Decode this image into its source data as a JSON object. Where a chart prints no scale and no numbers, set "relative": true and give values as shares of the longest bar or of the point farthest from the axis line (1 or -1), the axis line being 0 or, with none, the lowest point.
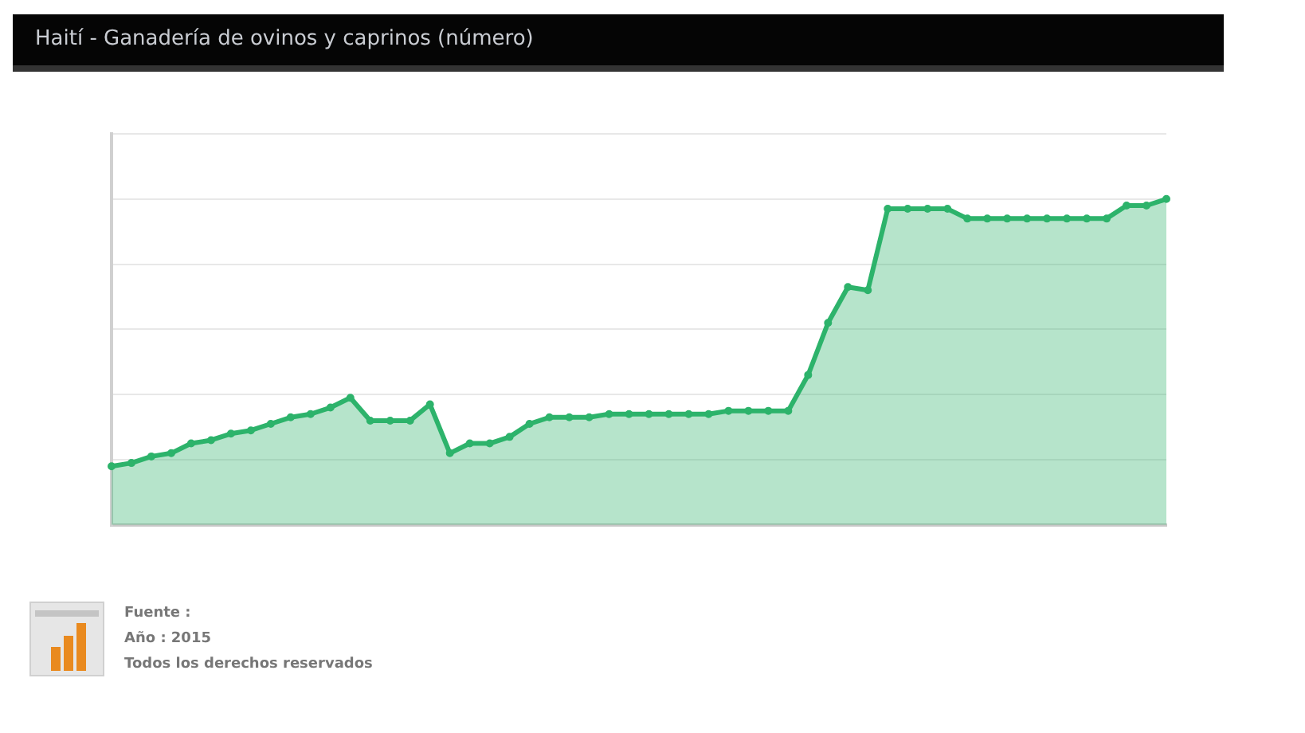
{
  "chart_data": {
    "type": "area",
    "title": "Haití - Ganadería de ovinos y caprinos (número)",
    "categories": [
      null,
      null,
      null,
      null,
      null,
      null,
      null,
      null,
      null,
      null,
      null,
      null,
      null,
      null,
      null,
      null,
      null,
      null,
      null,
      null,
      null,
      null,
      null,
      null,
      null,
      null,
      null,
      null,
      null,
      null,
      null,
      null,
      null,
      null,
      null,
      null,
      null,
      null,
      null,
      null,
      null,
      null,
      null,
      null,
      null,
      null,
      null,
      null,
      null,
      null,
      null,
      null,
      null,
      null
    ],
    "relative": true,
    "color": "#2db36b",
    "values": [
      0.18,
      0.19,
      0.21,
      0.22,
      0.25,
      0.26,
      0.28,
      0.29,
      0.31,
      0.33,
      0.34,
      0.36,
      0.39,
      0.32,
      0.32,
      0.32,
      0.37,
      0.22,
      0.25,
      0.25,
      0.27,
      0.31,
      0.33,
      0.33,
      0.33,
      0.34,
      0.34,
      0.34,
      0.34,
      0.34,
      0.34,
      0.35,
      0.35,
      0.35,
      0.35,
      0.46,
      0.62,
      0.73,
      0.72,
      0.97,
      0.97,
      0.97,
      0.97,
      0.94,
      0.94,
      0.94,
      0.94,
      0.94,
      0.94,
      0.94,
      0.94,
      0.98,
      0.98,
      1
    ],
    "marker": "circle",
    "grid": "y",
    "annotations": [
      "Fuente :",
      "Año : 2015",
      "Todos los derechos reservados"
    ]
  }
}
